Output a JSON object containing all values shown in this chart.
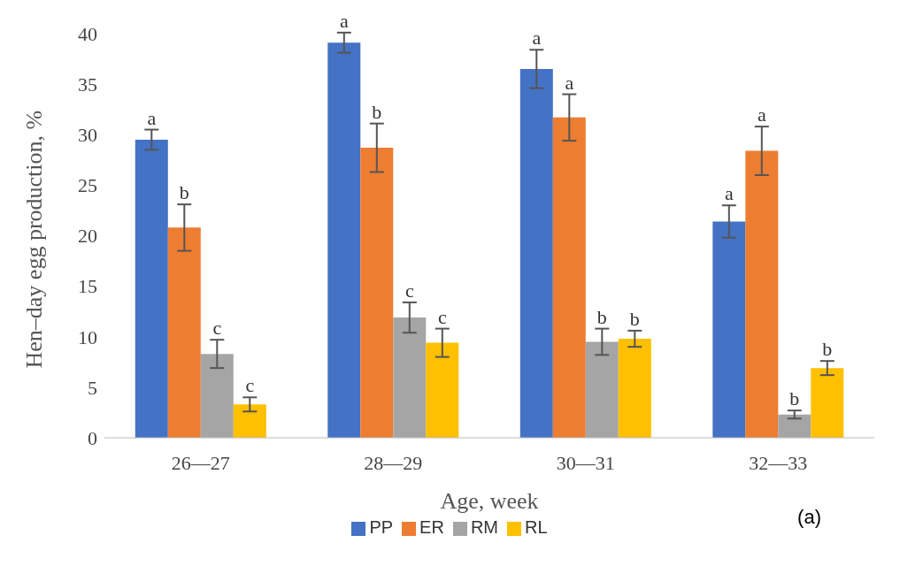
{
  "chart_data": {
    "type": "bar",
    "xlabel": "Age, week",
    "ylabel": "Hen–day egg production, %",
    "categories": [
      "26—27",
      "28—29",
      "30—31",
      "32—33"
    ],
    "series": [
      {
        "name": "PP",
        "color": "#4472c4",
        "values": [
          29.5,
          39.1,
          36.5,
          21.4
        ],
        "errors": [
          1.0,
          1.0,
          1.9,
          1.6
        ]
      },
      {
        "name": "ER",
        "color": "#ed7d31",
        "values": [
          20.8,
          28.7,
          31.7,
          28.4
        ],
        "errors": [
          2.3,
          2.4,
          2.3,
          2.4
        ]
      },
      {
        "name": "RM",
        "color": "#a5a5a5",
        "values": [
          8.3,
          11.9,
          9.5,
          2.3
        ],
        "errors": [
          1.4,
          1.5,
          1.3,
          0.4
        ]
      },
      {
        "name": "RL",
        "color": "#ffc000",
        "values": [
          3.3,
          9.4,
          9.8,
          6.9
        ],
        "errors": [
          0.7,
          1.4,
          0.8,
          0.7
        ]
      }
    ],
    "ylim": [
      0,
      40
    ],
    "yticks": [
      0,
      5,
      10,
      15,
      20,
      25,
      30,
      35,
      40
    ],
    "grid": false,
    "legend": "bottom",
    "annotations": [
      "a",
      "b",
      "c",
      "c",
      "a",
      "b",
      "c",
      "c",
      "a",
      "a",
      "b",
      "b",
      "a",
      "a",
      "b",
      "b",
      "(a)"
    ]
  }
}
